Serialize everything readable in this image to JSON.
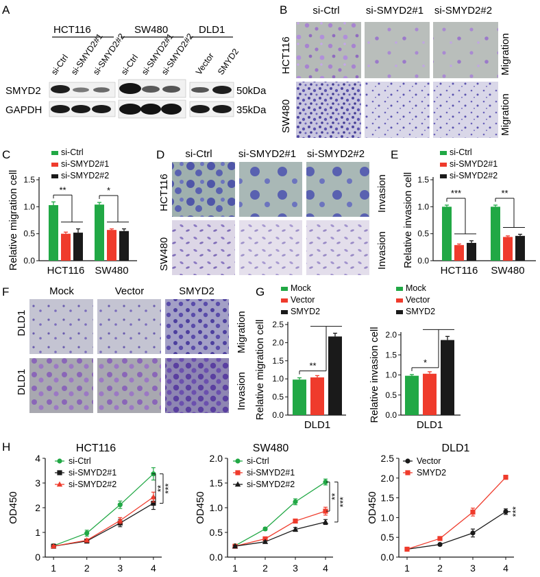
{
  "colors": {
    "green": "#21A845",
    "red": "#EF3B2C",
    "black": "#1A1A1A",
    "blot": "#2B2B2B",
    "crystal_blue": "#5B4FA8",
    "crystal_purple": "#8B6AC4",
    "grey_bg": "#B8BDBA",
    "light_bg": "#D9D6E6"
  },
  "panels": {
    "A": {
      "letter": "A",
      "cell_lines": [
        "HCT116",
        "SW480",
        "DLD1"
      ],
      "lanes": [
        "si-Ctrl",
        "si-SMYD2#1",
        "si-SMYD2#2",
        "si-Ctrl",
        "si-SMYD2#1",
        "si-SMYD2#2",
        "Vector",
        "SMYD2"
      ],
      "rows": [
        "SMYD2",
        "GAPDH"
      ],
      "sizes": [
        "50kDa",
        "35kDa"
      ]
    },
    "B": {
      "letter": "B",
      "columns": [
        "si-Ctrl",
        "si-SMYD2#1",
        "si-SMYD2#2"
      ],
      "rows": [
        "HCT116",
        "SW480"
      ],
      "side_labels": [
        "Migration",
        "Migration"
      ]
    },
    "D": {
      "letter": "D",
      "columns": [
        "si-Ctrl",
        "si-SMYD2#1",
        "si-SMYD2#2"
      ],
      "rows": [
        "HCT116",
        "SW480"
      ],
      "side_labels": [
        "Invasion",
        "Invasion"
      ]
    },
    "F": {
      "letter": "F",
      "columns": [
        "Mock",
        "Vector",
        "SMYD2"
      ],
      "rows": [
        "DLD1",
        "DLD1"
      ],
      "side_labels": [
        "Migration",
        "Invasion"
      ]
    },
    "C": {
      "letter": "C"
    },
    "E": {
      "letter": "E"
    },
    "G": {
      "letter": "G"
    },
    "H": {
      "letter": "H"
    }
  },
  "chart_data": [
    {
      "id": "C",
      "type": "bar",
      "title": "",
      "categories": [
        "HCT116",
        "SW480"
      ],
      "ylabel": "Relative migration cell",
      "ylim": [
        0,
        1.5
      ],
      "yticks": [
        "0.0",
        "0.5",
        "1.0",
        "1.5"
      ],
      "series": [
        {
          "name": "si-Ctrl",
          "color": "#21A845",
          "values": [
            1.03,
            1.04
          ],
          "errors": [
            0.06,
            0.04
          ]
        },
        {
          "name": "si-SMYD2#1",
          "color": "#EF3B2C",
          "values": [
            0.5,
            0.57
          ],
          "errors": [
            0.03,
            0.02
          ]
        },
        {
          "name": "si-SMYD2#2",
          "color": "#1A1A1A",
          "values": [
            0.52,
            0.55
          ],
          "errors": [
            0.07,
            0.04
          ]
        }
      ],
      "significance": [
        "**",
        "*"
      ]
    },
    {
      "id": "E",
      "type": "bar",
      "title": "",
      "categories": [
        "HCT116",
        "SW480"
      ],
      "ylabel": "Relative invasion cell",
      "ylim": [
        0,
        1.5
      ],
      "yticks": [
        "0.0",
        "0.5",
        "1.0",
        "1.5"
      ],
      "series": [
        {
          "name": "si-Ctrl",
          "color": "#21A845",
          "values": [
            1.0,
            1.0
          ],
          "errors": [
            0.03,
            0.03
          ]
        },
        {
          "name": "si-SMYD2#1",
          "color": "#EF3B2C",
          "values": [
            0.29,
            0.44
          ],
          "errors": [
            0.02,
            0.02
          ]
        },
        {
          "name": "si-SMYD2#2",
          "color": "#1A1A1A",
          "values": [
            0.33,
            0.46
          ],
          "errors": [
            0.04,
            0.03
          ]
        }
      ],
      "significance": [
        "***",
        "**"
      ]
    },
    {
      "id": "G1",
      "type": "bar",
      "title": "",
      "categories": [
        "DLD1"
      ],
      "ylabel": "Relative migration cell",
      "ylim": [
        0,
        2.5
      ],
      "yticks": [
        "0.0",
        "0.5",
        "1.0",
        "1.5",
        "2.0",
        "2.5"
      ],
      "series": [
        {
          "name": "Mock",
          "color": "#21A845",
          "values": [
            0.98
          ],
          "errors": [
            0.05
          ]
        },
        {
          "name": "Vector",
          "color": "#EF3B2C",
          "values": [
            1.04
          ],
          "errors": [
            0.05
          ]
        },
        {
          "name": "SMYD2",
          "color": "#1A1A1A",
          "values": [
            2.17
          ],
          "errors": [
            0.09
          ]
        }
      ],
      "significance": [
        "**"
      ]
    },
    {
      "id": "G2",
      "type": "bar",
      "title": "",
      "categories": [
        "DLD1"
      ],
      "ylabel": "Relative invasion cell",
      "ylim": [
        0,
        2.0
      ],
      "yticks": [
        "0.0",
        "0.5",
        "1.0",
        "1.5",
        "2.0"
      ],
      "series": [
        {
          "name": "Mock",
          "color": "#21A845",
          "values": [
            0.98
          ],
          "errors": [
            0.03
          ]
        },
        {
          "name": "Vector",
          "color": "#EF3B2C",
          "values": [
            1.03
          ],
          "errors": [
            0.05
          ]
        },
        {
          "name": "SMYD2",
          "color": "#1A1A1A",
          "values": [
            1.87
          ],
          "errors": [
            0.09
          ]
        }
      ],
      "significance": [
        "*"
      ]
    },
    {
      "id": "H1",
      "type": "line",
      "title": "HCT116",
      "x": [
        1,
        2,
        3,
        4
      ],
      "ylabel": "OD450",
      "ylim": [
        0,
        4
      ],
      "yticks": [
        "0",
        "1",
        "2",
        "3",
        "4"
      ],
      "series": [
        {
          "name": "si-Ctrl",
          "color": "#21A845",
          "marker": "circle",
          "values": [
            0.46,
            0.97,
            2.12,
            3.37
          ],
          "errors": [
            0.05,
            0.12,
            0.15,
            0.25
          ]
        },
        {
          "name": "si-SMYD2#1",
          "color": "#1A1A1A",
          "marker": "square",
          "values": [
            0.44,
            0.65,
            1.38,
            2.18
          ],
          "errors": [
            0.04,
            0.05,
            0.15,
            0.25
          ]
        },
        {
          "name": "si-SMYD2#2",
          "color": "#EF3B2C",
          "marker": "triangle",
          "values": [
            0.44,
            0.68,
            1.48,
            2.43
          ],
          "errors": [
            0.04,
            0.06,
            0.12,
            0.2
          ]
        }
      ],
      "significance": [
        "**",
        "***"
      ]
    },
    {
      "id": "H2",
      "type": "line",
      "title": "SW480",
      "x": [
        1,
        2,
        3,
        4
      ],
      "ylabel": "OD450",
      "ylim": [
        0,
        2.0
      ],
      "yticks": [
        "0.0",
        "0.5",
        "1.0",
        "1.5",
        "2.0"
      ],
      "series": [
        {
          "name": "si-Ctrl",
          "color": "#21A845",
          "marker": "circle",
          "values": [
            0.23,
            0.57,
            1.12,
            1.52
          ],
          "errors": [
            0.02,
            0.03,
            0.06,
            0.06
          ]
        },
        {
          "name": "si-SMYD2#1",
          "color": "#EF3B2C",
          "marker": "square",
          "values": [
            0.22,
            0.37,
            0.73,
            0.93
          ],
          "errors": [
            0.02,
            0.03,
            0.04,
            0.08
          ]
        },
        {
          "name": "si-SMYD2#2",
          "color": "#1A1A1A",
          "marker": "triangle",
          "values": [
            0.22,
            0.31,
            0.56,
            0.71
          ],
          "errors": [
            0.02,
            0.02,
            0.04,
            0.05
          ]
        }
      ],
      "significance": [
        "**",
        "***"
      ]
    },
    {
      "id": "H3",
      "type": "line",
      "title": "DLD1",
      "x": [
        1,
        2,
        3,
        4
      ],
      "ylabel": "OD450",
      "ylim": [
        0,
        2.5
      ],
      "yticks": [
        "0.0",
        "0.5",
        "1.0",
        "1.5",
        "2.0",
        "2.5"
      ],
      "series": [
        {
          "name": "Vector",
          "color": "#1A1A1A",
          "marker": "circle",
          "values": [
            0.2,
            0.32,
            0.61,
            1.15
          ],
          "errors": [
            0.02,
            0.03,
            0.1,
            0.07
          ]
        },
        {
          "name": "SMYD2",
          "color": "#EF3B2C",
          "marker": "square",
          "values": [
            0.2,
            0.47,
            1.14,
            2.02
          ],
          "errors": [
            0.02,
            0.04,
            0.1,
            0.05
          ]
        }
      ],
      "significance": [
        "***"
      ]
    }
  ]
}
